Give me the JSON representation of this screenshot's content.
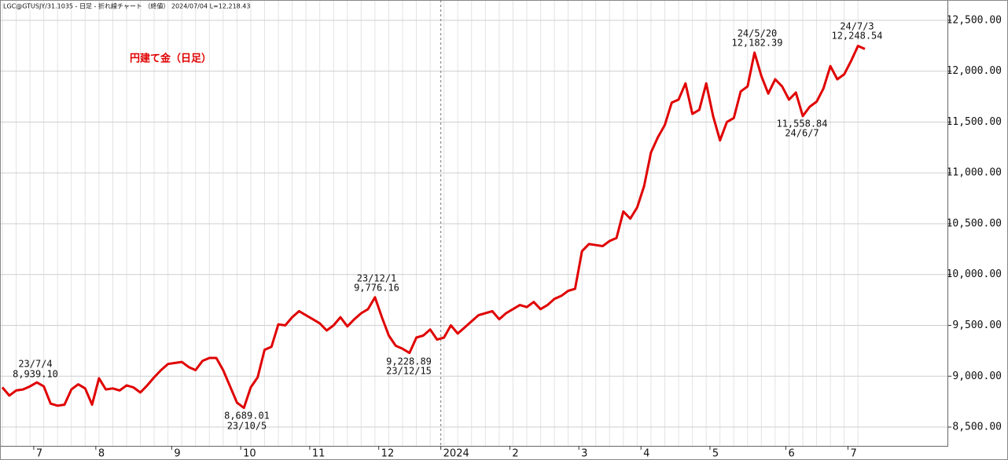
{
  "chart_data": {
    "type": "line",
    "header": "LGC@GTUSJY/31.1035 - 日足 - 折れ線チャート （終値） 2024/07/04 L=12,218.43",
    "title": "円建て金（日足）",
    "categories": [
      null,
      null,
      null,
      null,
      null,
      "7",
      null,
      null,
      null,
      null,
      null,
      null,
      null,
      null,
      "8",
      null,
      null,
      null,
      null,
      null,
      null,
      null,
      null,
      null,
      null,
      "9",
      null,
      null,
      null,
      null,
      null,
      null,
      null,
      null,
      null,
      "10",
      null,
      null,
      null,
      null,
      null,
      null,
      null,
      null,
      null,
      "11",
      null,
      null,
      null,
      null,
      null,
      null,
      null,
      null,
      null,
      "12",
      null,
      null,
      null,
      null,
      null,
      null,
      null,
      null,
      "2024",
      null,
      null,
      null,
      null,
      null,
      null,
      null,
      null,
      null,
      "2",
      null,
      null,
      null,
      null,
      null,
      null,
      null,
      null,
      null,
      "3",
      null,
      null,
      null,
      null,
      null,
      null,
      null,
      null,
      "4",
      null,
      null,
      null,
      null,
      null,
      null,
      null,
      null,
      null,
      "5",
      null,
      null,
      null,
      null,
      null,
      null,
      null,
      null,
      null,
      null,
      "6",
      null,
      null,
      null,
      null,
      null,
      null,
      null,
      null,
      "7",
      null,
      null
    ],
    "series": [
      {
        "name": "円建て金",
        "color": "#e00000",
        "values": [
          8890,
          8810,
          8860,
          8870,
          8900,
          8939.1,
          8900,
          8730,
          8710,
          8720,
          8870,
          8920,
          8880,
          8720,
          8980,
          8870,
          8880,
          8860,
          8910,
          8890,
          8840,
          8910,
          8990,
          9060,
          9120,
          9130,
          9140,
          9090,
          9060,
          9150,
          9180,
          9180,
          9060,
          8900,
          8740,
          8689.01,
          8890,
          8990,
          9260,
          9290,
          9510,
          9500,
          9580,
          9640,
          9600,
          9560,
          9520,
          9450,
          9500,
          9580,
          9490,
          9560,
          9620,
          9660,
          9776.16,
          9580,
          9400,
          9300,
          9270,
          9228.89,
          9380,
          9400,
          9460,
          9360,
          9380,
          9500,
          9420,
          9480,
          9540,
          9600,
          9620,
          9640,
          9560,
          9620,
          9660,
          9700,
          9680,
          9730,
          9660,
          9700,
          9760,
          9790,
          9840,
          9860,
          10230,
          10300,
          10290,
          10280,
          10330,
          10360,
          10620,
          10550,
          10660,
          10870,
          11200,
          11350,
          11470,
          11690,
          11720,
          11880,
          11580,
          11620,
          11880,
          11560,
          11320,
          11500,
          11540,
          11800,
          11850,
          12182.39,
          11950,
          11780,
          11920,
          11850,
          11720,
          11790,
          11558.84,
          11650,
          11700,
          11830,
          12050,
          11920,
          11970,
          12100,
          12248.54,
          12218.43
        ]
      }
    ],
    "annotations": [
      {
        "lines": [
          "23/7/4",
          "8,939.10"
        ]
      },
      {
        "lines": [
          "8,689.01",
          "23/10/5"
        ]
      },
      {
        "lines": [
          "23/12/1",
          "9,776.16"
        ]
      },
      {
        "lines": [
          "9,228.89",
          "23/12/15"
        ]
      },
      {
        "lines": [
          "24/5/20",
          "12,182.39"
        ]
      },
      {
        "lines": [
          "11,558.84",
          "24/6/7"
        ]
      },
      {
        "lines": [
          "24/7/3",
          "12,248.54"
        ]
      }
    ],
    "ylim": [
      8315,
      12700
    ],
    "yticks": [
      {
        "value": 8500,
        "label": "8,500.00"
      },
      {
        "value": 9000,
        "label": "9,000.00"
      },
      {
        "value": 9500,
        "label": "9,500.00"
      },
      {
        "value": 10000,
        "label": "10,000.00"
      },
      {
        "value": 10500,
        "label": "10,500.00"
      },
      {
        "value": 11000,
        "label": "11,000.00"
      },
      {
        "value": 11500,
        "label": "11,500.00"
      },
      {
        "value": 12000,
        "label": "12,000.00"
      },
      {
        "value": 12500,
        "label": "12,500.00"
      }
    ],
    "grid": true
  }
}
